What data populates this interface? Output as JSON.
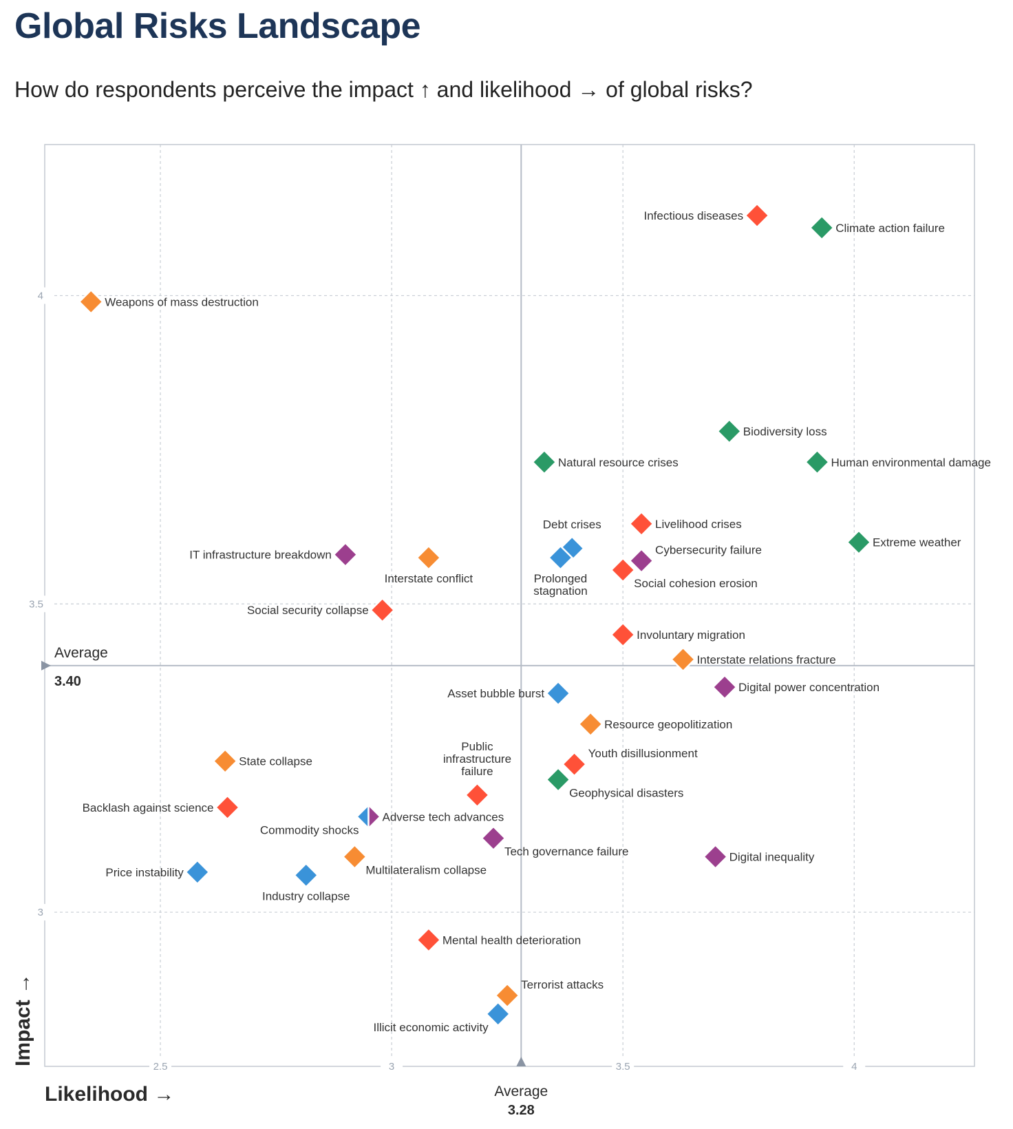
{
  "header": {
    "title": "Global Risks Landscape",
    "subtitle": "How do respondents perceive the impact ↑ and likelihood → of global risks?"
  },
  "colors": {
    "economic": "#3a93d9",
    "environmental": "#2a9a66",
    "geopolitical": "#f78c33",
    "societal": "#ff5138",
    "technological": "#9c3f8e",
    "axis": "#c3c9d1",
    "grid": "#c8cdd4",
    "average_line": "#b5bcc6",
    "average_marker": "#8a94a3"
  },
  "chart_data": {
    "type": "scatter",
    "title": "Global Risks Landscape",
    "subtitle": "How do respondents perceive the impact ↑ and likelihood → of global risks?",
    "xlabel": "Likelihood →",
    "ylabel": "Impact →",
    "xlim": [
      2.25,
      4.26
    ],
    "ylim": [
      2.75,
      4.245
    ],
    "x_ticks": [
      2.5,
      3,
      3.5,
      4
    ],
    "x_tick_labels": [
      "2.5",
      "3",
      "3.5",
      "4"
    ],
    "y_ticks": [
      3,
      3.5,
      4
    ],
    "y_tick_labels": [
      "3",
      "3.5",
      "4"
    ],
    "grid": true,
    "x_average": {
      "label": "Average",
      "value": 3.28,
      "value_label": "3.28"
    },
    "y_average": {
      "label": "Average",
      "value": 3.4,
      "value_label": "3.40"
    },
    "points": [
      {
        "name": "Infectious diseases",
        "x": 3.79,
        "y": 4.13,
        "category": "societal",
        "label_pos": "left"
      },
      {
        "name": "Climate action failure",
        "x": 3.93,
        "y": 4.11,
        "category": "environmental",
        "label_pos": "right"
      },
      {
        "name": "Weapons of mass destruction",
        "x": 2.35,
        "y": 3.99,
        "category": "geopolitical",
        "label_pos": "right"
      },
      {
        "name": "Biodiversity loss",
        "x": 3.73,
        "y": 3.78,
        "category": "environmental",
        "label_pos": "right"
      },
      {
        "name": "Natural resource crises",
        "x": 3.33,
        "y": 3.73,
        "category": "environmental",
        "label_pos": "right"
      },
      {
        "name": "Human environmental damage",
        "x": 3.92,
        "y": 3.73,
        "category": "environmental",
        "label_pos": "right"
      },
      {
        "name": "Livelihood crises",
        "x": 3.54,
        "y": 3.63,
        "category": "societal",
        "label_pos": "right"
      },
      {
        "name": "Extreme weather",
        "x": 4.01,
        "y": 3.6,
        "category": "environmental",
        "label_pos": "right"
      },
      {
        "name": "Debt crises",
        "x": 3.39,
        "y": 3.59,
        "category": "economic",
        "label_pos": "top"
      },
      {
        "name": "Prolonged stagnation",
        "lines": [
          "Prolonged",
          "stagnation"
        ],
        "x": 3.365,
        "y": 3.575,
        "category": "economic",
        "label_pos": "bottom"
      },
      {
        "name": "Cybersecurity failure",
        "x": 3.54,
        "y": 3.57,
        "category": "technological",
        "label_pos": "top-right"
      },
      {
        "name": "Social cohesion erosion",
        "x": 3.5,
        "y": 3.555,
        "category": "societal",
        "label_pos": "bottom-right"
      },
      {
        "name": "IT infrastructure breakdown",
        "x": 2.9,
        "y": 3.58,
        "category": "technological",
        "label_pos": "left"
      },
      {
        "name": "Interstate conflict",
        "x": 3.08,
        "y": 3.575,
        "category": "geopolitical",
        "label_pos": "bottom"
      },
      {
        "name": "Social security collapse",
        "x": 2.98,
        "y": 3.49,
        "category": "societal",
        "label_pos": "left"
      },
      {
        "name": "Involuntary migration",
        "x": 3.5,
        "y": 3.45,
        "category": "societal",
        "label_pos": "right"
      },
      {
        "name": "Interstate relations fracture",
        "x": 3.63,
        "y": 3.41,
        "category": "geopolitical",
        "label_pos": "right"
      },
      {
        "name": "Asset bubble burst",
        "x": 3.36,
        "y": 3.355,
        "category": "economic",
        "label_pos": "left"
      },
      {
        "name": "Digital power concentration",
        "x": 3.72,
        "y": 3.365,
        "category": "technological",
        "label_pos": "right"
      },
      {
        "name": "Resource geopolitization",
        "x": 3.43,
        "y": 3.305,
        "category": "geopolitical",
        "label_pos": "right"
      },
      {
        "name": "State collapse",
        "x": 2.64,
        "y": 3.245,
        "category": "geopolitical",
        "label_pos": "right"
      },
      {
        "name": "Youth disillusionment",
        "x": 3.395,
        "y": 3.24,
        "category": "societal",
        "label_pos": "top-right"
      },
      {
        "name": "Geophysical disasters",
        "x": 3.36,
        "y": 3.215,
        "category": "environmental",
        "label_pos": "bottom-right"
      },
      {
        "name": "Public infrastructure failure",
        "lines": [
          "Public",
          "infrastructure",
          "failure"
        ],
        "x": 3.185,
        "y": 3.19,
        "category": "societal",
        "label_pos": "top"
      },
      {
        "name": "Backlash against science",
        "x": 2.645,
        "y": 3.17,
        "category": "societal",
        "label_pos": "left"
      },
      {
        "name": "Commodity shocks",
        "x": 2.95,
        "y": 3.155,
        "category": "economic",
        "label_pos": "bottom-left",
        "half": "left"
      },
      {
        "name": "Adverse tech advances",
        "x": 2.95,
        "y": 3.155,
        "category": "technological",
        "label_pos": "right",
        "half": "right"
      },
      {
        "name": "Tech governance failure",
        "x": 3.22,
        "y": 3.12,
        "category": "technological",
        "label_pos": "bottom-right"
      },
      {
        "name": "Digital inequality",
        "x": 3.7,
        "y": 3.09,
        "category": "technological",
        "label_pos": "right"
      },
      {
        "name": "Multilateralism collapse",
        "x": 2.92,
        "y": 3.09,
        "category": "geopolitical",
        "label_pos": "bottom-right"
      },
      {
        "name": "Price instability",
        "x": 2.58,
        "y": 3.065,
        "category": "economic",
        "label_pos": "left"
      },
      {
        "name": "Industry collapse",
        "x": 2.815,
        "y": 3.06,
        "category": "economic",
        "label_pos": "bottom"
      },
      {
        "name": "Mental health deterioration",
        "x": 3.08,
        "y": 2.955,
        "category": "societal",
        "label_pos": "right"
      },
      {
        "name": "Terrorist attacks",
        "x": 3.25,
        "y": 2.865,
        "category": "geopolitical",
        "label_pos": "top-right"
      },
      {
        "name": "Illicit economic activity",
        "x": 3.23,
        "y": 2.835,
        "category": "economic",
        "label_pos": "bottom-left"
      }
    ]
  }
}
